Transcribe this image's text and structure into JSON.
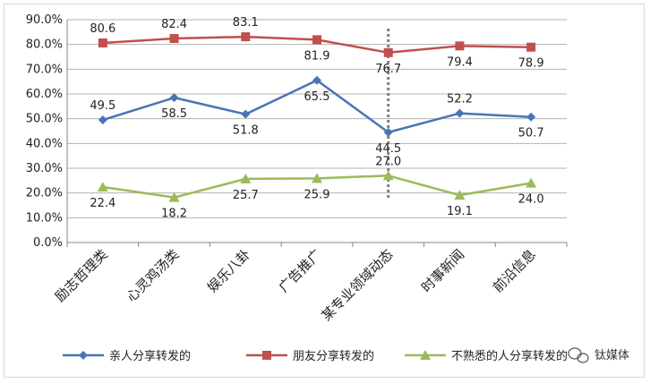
{
  "chart_data": {
    "type": "line",
    "categories": [
      "励志哲理类",
      "心灵鸡汤类",
      "娱乐八卦",
      "广告推广",
      "某专业领域动态",
      "时事新闻",
      "前沿信息"
    ],
    "ylim": [
      0,
      90
    ],
    "yticks": [
      "0.0%",
      "10.0%",
      "20.0%",
      "30.0%",
      "40.0%",
      "50.0%",
      "60.0%",
      "70.0%",
      "80.0%",
      "90.0%"
    ],
    "series": [
      {
        "name": "亲人分享转发的",
        "color": "#4a74b5",
        "marker": "diamond",
        "values": [
          49.5,
          58.5,
          51.8,
          65.5,
          44.5,
          52.2,
          50.7
        ],
        "labels": [
          "49.5",
          "58.5",
          "51.8",
          "65.5",
          "44.5",
          "52.2",
          "50.7"
        ]
      },
      {
        "name": "朋友分享转发的",
        "color": "#c0504d",
        "marker": "square",
        "values": [
          80.6,
          82.4,
          83.1,
          81.9,
          76.7,
          79.4,
          78.9
        ],
        "labels": [
          "80.6",
          "82.4",
          "83.1",
          "81.9",
          "76.7",
          "79.4",
          "78.9"
        ]
      },
      {
        "name": "不熟悉的人分享转发的",
        "color": "#9bbb59",
        "marker": "triangle",
        "values": [
          22.4,
          18.2,
          25.7,
          25.9,
          27.0,
          19.1,
          24.0
        ],
        "labels": [
          "22.4",
          "18.2",
          "25.7",
          "25.9",
          "27.0",
          "19.1",
          "24.0"
        ]
      }
    ],
    "divider_after_category": "广告推广",
    "divider_color": "#7f7f7f"
  },
  "watermark": {
    "icon": "wechat-icon",
    "text": "钛媒体"
  }
}
